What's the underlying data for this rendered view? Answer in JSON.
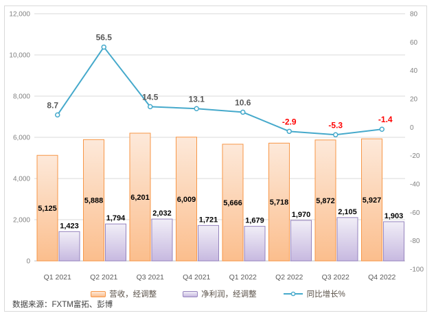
{
  "chart_data": {
    "type": "combo-bar-line",
    "categories": [
      "Q1 2021",
      "Q2 2021",
      "Q3 2021",
      "Q4 2021",
      "Q1 2022",
      "Q2 2022",
      "Q3 2022",
      "Q4 2022"
    ],
    "series": [
      {
        "name": "营收，经调整",
        "type": "bar",
        "axis": "left",
        "values": [
          5125,
          5888,
          6201,
          6009,
          5666,
          5718,
          5872,
          5927
        ],
        "labels": [
          "5,125",
          "5,888",
          "6,201",
          "6,009",
          "5,666",
          "5,718",
          "5,872",
          "5,927"
        ]
      },
      {
        "name": "净利润，经调整",
        "type": "bar",
        "axis": "left",
        "values": [
          1423,
          1794,
          2032,
          1721,
          1679,
          1970,
          2105,
          1903
        ],
        "labels": [
          "1,423",
          "1,794",
          "2,032",
          "1,721",
          "1,679",
          "1,970",
          "2,105",
          "1,903"
        ]
      },
      {
        "name": "同比增长%",
        "type": "line",
        "axis": "right",
        "values": [
          8.7,
          56.5,
          14.5,
          13.1,
          10.6,
          -2.9,
          -5.3,
          -1.4
        ],
        "labels": [
          "8.7",
          "56.5",
          "14.5",
          "13.1",
          "10.6",
          "-2.9",
          "-5.3",
          "-1.4"
        ]
      }
    ],
    "left_axis": {
      "min": 0,
      "max": 12000,
      "step": 2000,
      "ticks": [
        "12,000",
        "10,000",
        "8,000",
        "6,000",
        "4,000",
        "2,000",
        "0"
      ]
    },
    "right_axis": {
      "min": -100,
      "max": 80,
      "step": 20,
      "ticks": [
        "80",
        "60",
        "40",
        "20",
        "0",
        "-20",
        "-40",
        "-60",
        "-80",
        "-100"
      ]
    },
    "grid": true,
    "legend_position": "bottom"
  },
  "colors": {
    "revenue_border": "#F79646",
    "revenue_fill_top": "#FDE9DA",
    "revenue_fill_bottom": "#FBBE8D",
    "profit_border": "#9583BD",
    "profit_fill_top": "#F1EEF7",
    "profit_fill_bottom": "#C7B9E0",
    "growth_line": "#45A9CB",
    "label_positive": "#595959",
    "label_negative": "#FF0000",
    "bar_label": "#000000",
    "axis_text": "#808080",
    "category_text": "#595959",
    "gridline": "#D9D9D9",
    "baseline": "#BFBFBF",
    "frame_border": "#D9D9D9"
  },
  "source_note": "数据来源：FXTM富拓、彭博"
}
